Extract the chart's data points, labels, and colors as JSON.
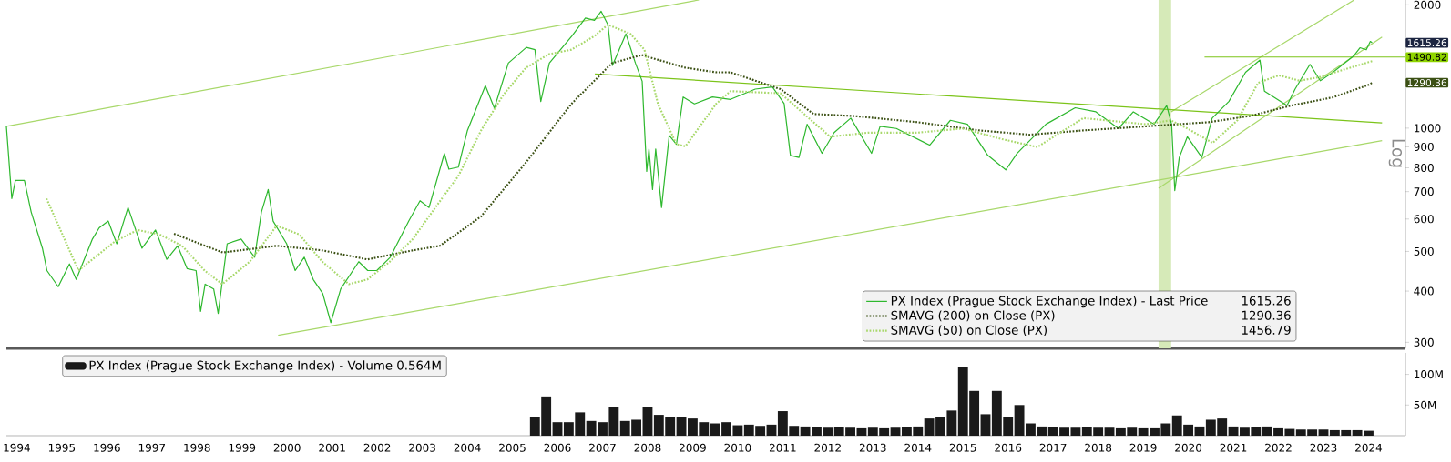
{
  "chart_data": [
    {
      "type": "line",
      "ylabel": "Log",
      "log": "y",
      "xlim": [
        1994.27,
        2025.32
      ],
      "ylim": [
        290,
        2055
      ],
      "yticks": [
        300,
        400,
        500,
        600,
        700,
        800,
        900,
        1000,
        2000
      ],
      "tick_labels": "y",
      "legend": "bottom right",
      "bands": [
        {
          "axis": "x",
          "from": 2019.84,
          "to": 2020.12,
          "color": "#d6eab8"
        }
      ],
      "series": [
        {
          "type": "line",
          "color": "#a8d86a",
          "x": [
            1994.27,
            2009.64
          ],
          "values": [
            1010,
            2055
          ]
        },
        {
          "type": "line",
          "color": "#a8d86a",
          "x": [
            2000.3,
            2024.8
          ],
          "values": [
            312,
            932
          ]
        },
        {
          "type": "line",
          "color": "#a8d86a",
          "x": [
            2019.84,
            2024.8
          ],
          "values": [
            713,
            1668
          ]
        },
        {
          "type": "line",
          "color": "#a8d86a",
          "x": [
            2020.12,
            2024.18
          ],
          "values": [
            1096,
            2055
          ]
        },
        {
          "type": "line",
          "color": "#7cc41a",
          "x": [
            2007.33,
            2024.8
          ],
          "values": [
            1356,
            1030
          ]
        },
        {
          "type": "line",
          "color": "#7cc41a",
          "x": [
            2020.86,
            2025.32
          ],
          "values": [
            1490.82,
            1490.82
          ]
        },
        {
          "name": "PX Index (Prague Stock Exchange Index) - Last Price",
          "type": "line",
          "color": "#2eb82e",
          "x": [
            1994.27,
            1994.39,
            1994.47,
            1994.67,
            1994.82,
            1995.07,
            1995.17,
            1995.42,
            1995.67,
            1995.82,
            1996.18,
            1996.33,
            1996.53,
            1996.72,
            1996.97,
            1997.28,
            1997.58,
            1997.83,
            1998.07,
            1998.28,
            1998.48,
            1998.58,
            1998.68,
            1998.87,
            1998.97,
            1999.17,
            1999.48,
            1999.78,
            1999.93,
            2000.08,
            2000.19,
            2000.49,
            2000.68,
            2000.88,
            2001.08,
            2001.29,
            2001.47,
            2001.69,
            2002.09,
            2002.29,
            2002.49,
            2002.79,
            2003.2,
            2003.45,
            2003.65,
            2003.99,
            2004.09,
            2004.3,
            2004.5,
            2004.9,
            2005.1,
            2005.41,
            2005.81,
            2006.0,
            2006.13,
            2006.32,
            2006.82,
            2007.12,
            2007.32,
            2007.47,
            2007.62,
            2007.72,
            2008.02,
            2008.23,
            2008.38,
            2008.48,
            2008.53,
            2008.61,
            2008.68,
            2008.81,
            2008.98,
            2009.14,
            2009.29,
            2009.54,
            2009.94,
            2010.34,
            2010.89,
            2011.27,
            2011.53,
            2011.67,
            2011.86,
            2012.04,
            2012.37,
            2012.64,
            2013.01,
            2013.47,
            2013.66,
            2014.02,
            2014.76,
            2015.22,
            2015.6,
            2016.05,
            2016.45,
            2016.7,
            2017.34,
            2017.99,
            2018.45,
            2018.95,
            2019.28,
            2019.74,
            2020.02,
            2020.13,
            2020.2,
            2020.3,
            2020.48,
            2020.8,
            2021.03,
            2021.4,
            2021.77,
            2022.09,
            2022.19,
            2022.69,
            2022.87,
            2023.2,
            2023.43,
            2023.71,
            2024.17,
            2024.31,
            2024.45,
            2024.54,
            2024.58
          ],
          "values": [
            1010,
            673,
            745,
            745,
            624,
            509,
            449,
            410,
            466,
            427,
            536,
            571,
            593,
            522,
            640,
            509,
            564,
            478,
            516,
            454,
            449,
            357,
            416,
            405,
            353,
            522,
            536,
            484,
            624,
            708,
            593,
            522,
            449,
            484,
            427,
            395,
            335,
            405,
            472,
            449,
            449,
            484,
            593,
            665,
            640,
            867,
            794,
            803,
            985,
            1269,
            1118,
            1441,
            1574,
            1554,
            1161,
            1441,
            1678,
            1857,
            1833,
            1928,
            1788,
            1422,
            1699,
            1441,
            1301,
            784,
            889,
            708,
            889,
            640,
            960,
            913,
            1191,
            1146,
            1191,
            1175,
            1245,
            1260,
            1148,
            858,
            848,
            1022,
            868,
            975,
            1058,
            868,
            1010,
            998,
            909,
            1045,
            1022,
            858,
            791,
            868,
            1022,
            1121,
            1096,
            998,
            1096,
            1022,
            1135,
            1022,
            704,
            848,
            953,
            848,
            1058,
            1161,
            1368,
            1466,
            1231,
            1135,
            1245,
            1431,
            1305,
            1368,
            1500,
            1571,
            1553,
            1628,
            1615.26
          ]
        },
        {
          "name": "SMAVG (200)  on Close (PX)",
          "type": "line",
          "line_style": "dotted",
          "color": "#3b5014",
          "x": [
            1997.99,
            1999.07,
            2000.27,
            2001.28,
            2002.28,
            2003.29,
            2003.89,
            2004.8,
            2005.8,
            2006.81,
            2007.71,
            2008.37,
            2009.34,
            2010.02,
            2010.34,
            2011.45,
            2012.18,
            2013.1,
            2014.49,
            2015.87,
            2016.98,
            2018.17,
            2019.56,
            2020.95,
            2021.86,
            2022.78,
            2023.71,
            2024.5,
            2024.58
          ],
          "values": [
            552,
            497,
            516,
            503,
            478,
            503,
            516,
            608,
            824,
            1146,
            1441,
            1508,
            1404,
            1369,
            1368,
            1245,
            1083,
            1070,
            1034,
            987,
            964,
            987,
            1010,
            1034,
            1070,
            1135,
            1189,
            1275,
            1290.36
          ]
        },
        {
          "name": "SMAVG (50)  on Close (PX)",
          "type": "line",
          "line_style": "dotted",
          "color": "#a8d86a",
          "x": [
            1995.16,
            1995.87,
            1996.68,
            1997.18,
            1997.67,
            1998.17,
            1998.67,
            1999.06,
            1999.67,
            2000.27,
            2000.77,
            2001.28,
            2001.87,
            2002.28,
            2002.78,
            2003.29,
            2003.79,
            2004.3,
            2004.8,
            2005.3,
            2005.8,
            2006.31,
            2006.81,
            2007.32,
            2007.62,
            2008.12,
            2008.43,
            2008.73,
            2009.14,
            2009.34,
            2010.02,
            2010.34,
            2011.45,
            2012.55,
            2013.39,
            2014.49,
            2015.5,
            2016.33,
            2017.15,
            2018.17,
            2019.56,
            2020.11,
            2020.48,
            2021.04,
            2021.59,
            2022.05,
            2022.51,
            2022.97,
            2023.43,
            2023.89,
            2024.5,
            2024.58
          ],
          "values": [
            673,
            449,
            529,
            564,
            550,
            516,
            449,
            416,
            472,
            578,
            550,
            472,
            416,
            427,
            472,
            536,
            640,
            764,
            985,
            1206,
            1404,
            1515,
            1554,
            1678,
            1788,
            1699,
            1554,
            1146,
            913,
            903,
            1146,
            1231,
            1216,
            953,
            975,
            975,
            998,
            942,
            899,
            1058,
            1022,
            1045,
            998,
            920,
            1045,
            1290,
            1345,
            1305,
            1333,
            1383,
            1449,
            1456.79
          ]
        }
      ],
      "annotations": [
        "1615.26",
        {
          "text": "1490.82",
          "x": 2025.32,
          "y": 1490.82
        },
        "1290.36",
        "1615.26",
        "1290.36",
        "1456.79"
      ]
    },
    {
      "type": "bar",
      "xlim": [
        1994.27,
        2025.32
      ],
      "ylim": [
        0,
        135
      ],
      "legend": "top left",
      "yticks": [
        {
          "value": 50,
          "label": "50M"
        },
        {
          "value": 100,
          "label": "100M"
        }
      ],
      "xticks": [
        {
          "value": 1994.5,
          "label": "1994"
        },
        {
          "value": 1995.5,
          "label": "1995"
        },
        {
          "value": 1996.5,
          "label": "1996"
        },
        {
          "value": 1997.5,
          "label": "1997"
        },
        {
          "value": 1998.5,
          "label": "1998"
        },
        {
          "value": 1999.5,
          "label": "1999"
        },
        {
          "value": 2000.5,
          "label": "2000"
        },
        {
          "value": 2001.5,
          "label": "2001"
        },
        {
          "value": 2002.5,
          "label": "2002"
        },
        {
          "value": 2003.5,
          "label": "2003"
        },
        {
          "value": 2004.5,
          "label": "2004"
        },
        {
          "value": 2005.5,
          "label": "2005"
        },
        {
          "value": 2006.5,
          "label": "2006"
        },
        {
          "value": 2007.5,
          "label": "2007"
        },
        {
          "value": 2008.5,
          "label": "2008"
        },
        {
          "value": 2009.5,
          "label": "2009"
        },
        {
          "value": 2010.5,
          "label": "2010"
        },
        {
          "value": 2011.5,
          "label": "2011"
        },
        {
          "value": 2012.5,
          "label": "2012"
        },
        {
          "value": 2013.5,
          "label": "2013"
        },
        {
          "value": 2014.5,
          "label": "2014"
        },
        {
          "value": 2015.5,
          "label": "2015"
        },
        {
          "value": 2016.5,
          "label": "2016"
        },
        {
          "value": 2017.5,
          "label": "2017"
        },
        {
          "value": 2018.5,
          "label": "2018"
        },
        {
          "value": 2019.5,
          "label": "2019"
        },
        {
          "value": 2020.5,
          "label": "2020"
        },
        {
          "value": 2021.5,
          "label": "2021"
        },
        {
          "value": 2022.5,
          "label": "2022"
        },
        {
          "value": 2023.5,
          "label": "2023"
        },
        {
          "value": 2024.5,
          "label": "2024"
        }
      ],
      "x": [
        2006.0,
        2006.25,
        2006.5,
        2006.75,
        2007.0,
        2007.25,
        2007.5,
        2007.75,
        2008.0,
        2008.25,
        2008.5,
        2008.75,
        2009.0,
        2009.25,
        2009.5,
        2009.75,
        2010.0,
        2010.25,
        2010.5,
        2010.75,
        2011.0,
        2011.25,
        2011.5,
        2011.75,
        2012.0,
        2012.25,
        2012.5,
        2012.75,
        2013.0,
        2013.25,
        2013.5,
        2013.75,
        2014.0,
        2014.25,
        2014.5,
        2014.75,
        2015.0,
        2015.25,
        2015.5,
        2015.75,
        2016.0,
        2016.25,
        2016.5,
        2016.75,
        2017.0,
        2017.25,
        2017.5,
        2017.75,
        2018.0,
        2018.25,
        2018.5,
        2018.75,
        2019.0,
        2019.25,
        2019.5,
        2019.75,
        2020.0,
        2020.25,
        2020.5,
        2020.75,
        2021.0,
        2021.25,
        2021.5,
        2021.75,
        2022.0,
        2022.25,
        2022.5,
        2022.75,
        2023.0,
        2023.25,
        2023.5,
        2023.75,
        2024.0,
        2024.25,
        2024.5
      ],
      "series": [
        {
          "name": "PX Index (Prague Stock Exchange Index) - Volume 0.564M",
          "color": "#1a1a1a",
          "values": [
            31,
            64,
            22,
            22,
            38,
            24,
            22,
            46,
            24,
            26,
            47,
            34,
            31,
            31,
            28,
            22,
            20,
            22,
            17,
            18,
            16,
            18,
            40,
            16,
            15,
            14,
            13,
            14,
            13,
            12,
            13,
            12,
            13,
            14,
            15,
            28,
            30,
            41,
            112,
            73,
            35,
            73,
            30,
            50,
            20,
            15,
            14,
            13,
            13,
            14,
            13,
            13,
            12,
            13,
            12,
            12,
            20,
            33,
            18,
            15,
            26,
            28,
            15,
            13,
            14,
            15,
            12,
            11,
            10,
            10,
            10,
            9,
            9,
            9,
            8
          ]
        }
      ]
    }
  ]
}
